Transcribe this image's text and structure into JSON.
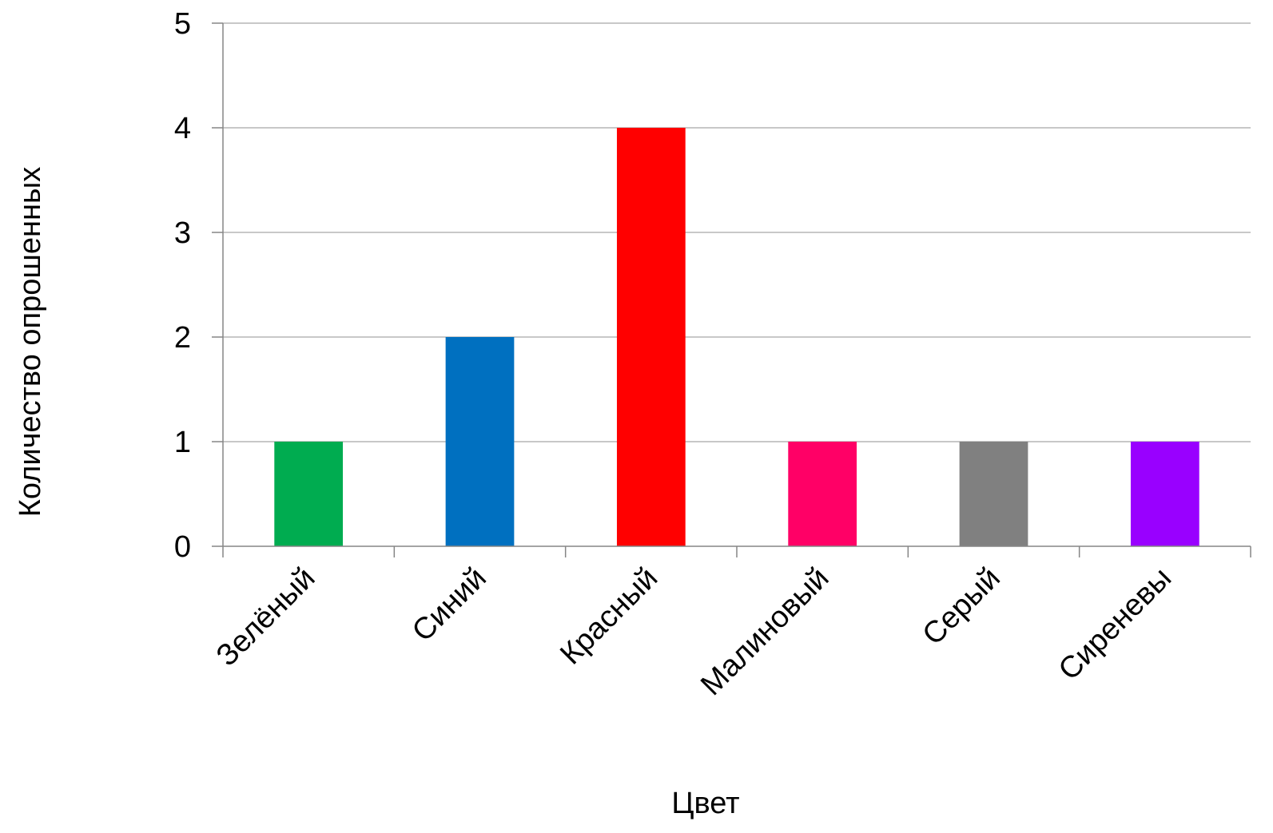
{
  "chart_data": {
    "type": "bar",
    "categories": [
      "Зелёный",
      "Синий",
      "Красный",
      "Малиновый",
      "Серый",
      "Сиреневы"
    ],
    "values": [
      1,
      2,
      4,
      1,
      1,
      1
    ],
    "colors": [
      "#00ac50",
      "#0070c0",
      "#ff0000",
      "#ff0066",
      "#808080",
      "#9900ff"
    ],
    "title": "",
    "xlabel": "Цвет",
    "ylabel": "Количество опрошенных",
    "ylim": [
      0,
      5
    ],
    "yticks": [
      0,
      1,
      2,
      3,
      4,
      5
    ],
    "grid": true,
    "legend": "none"
  }
}
